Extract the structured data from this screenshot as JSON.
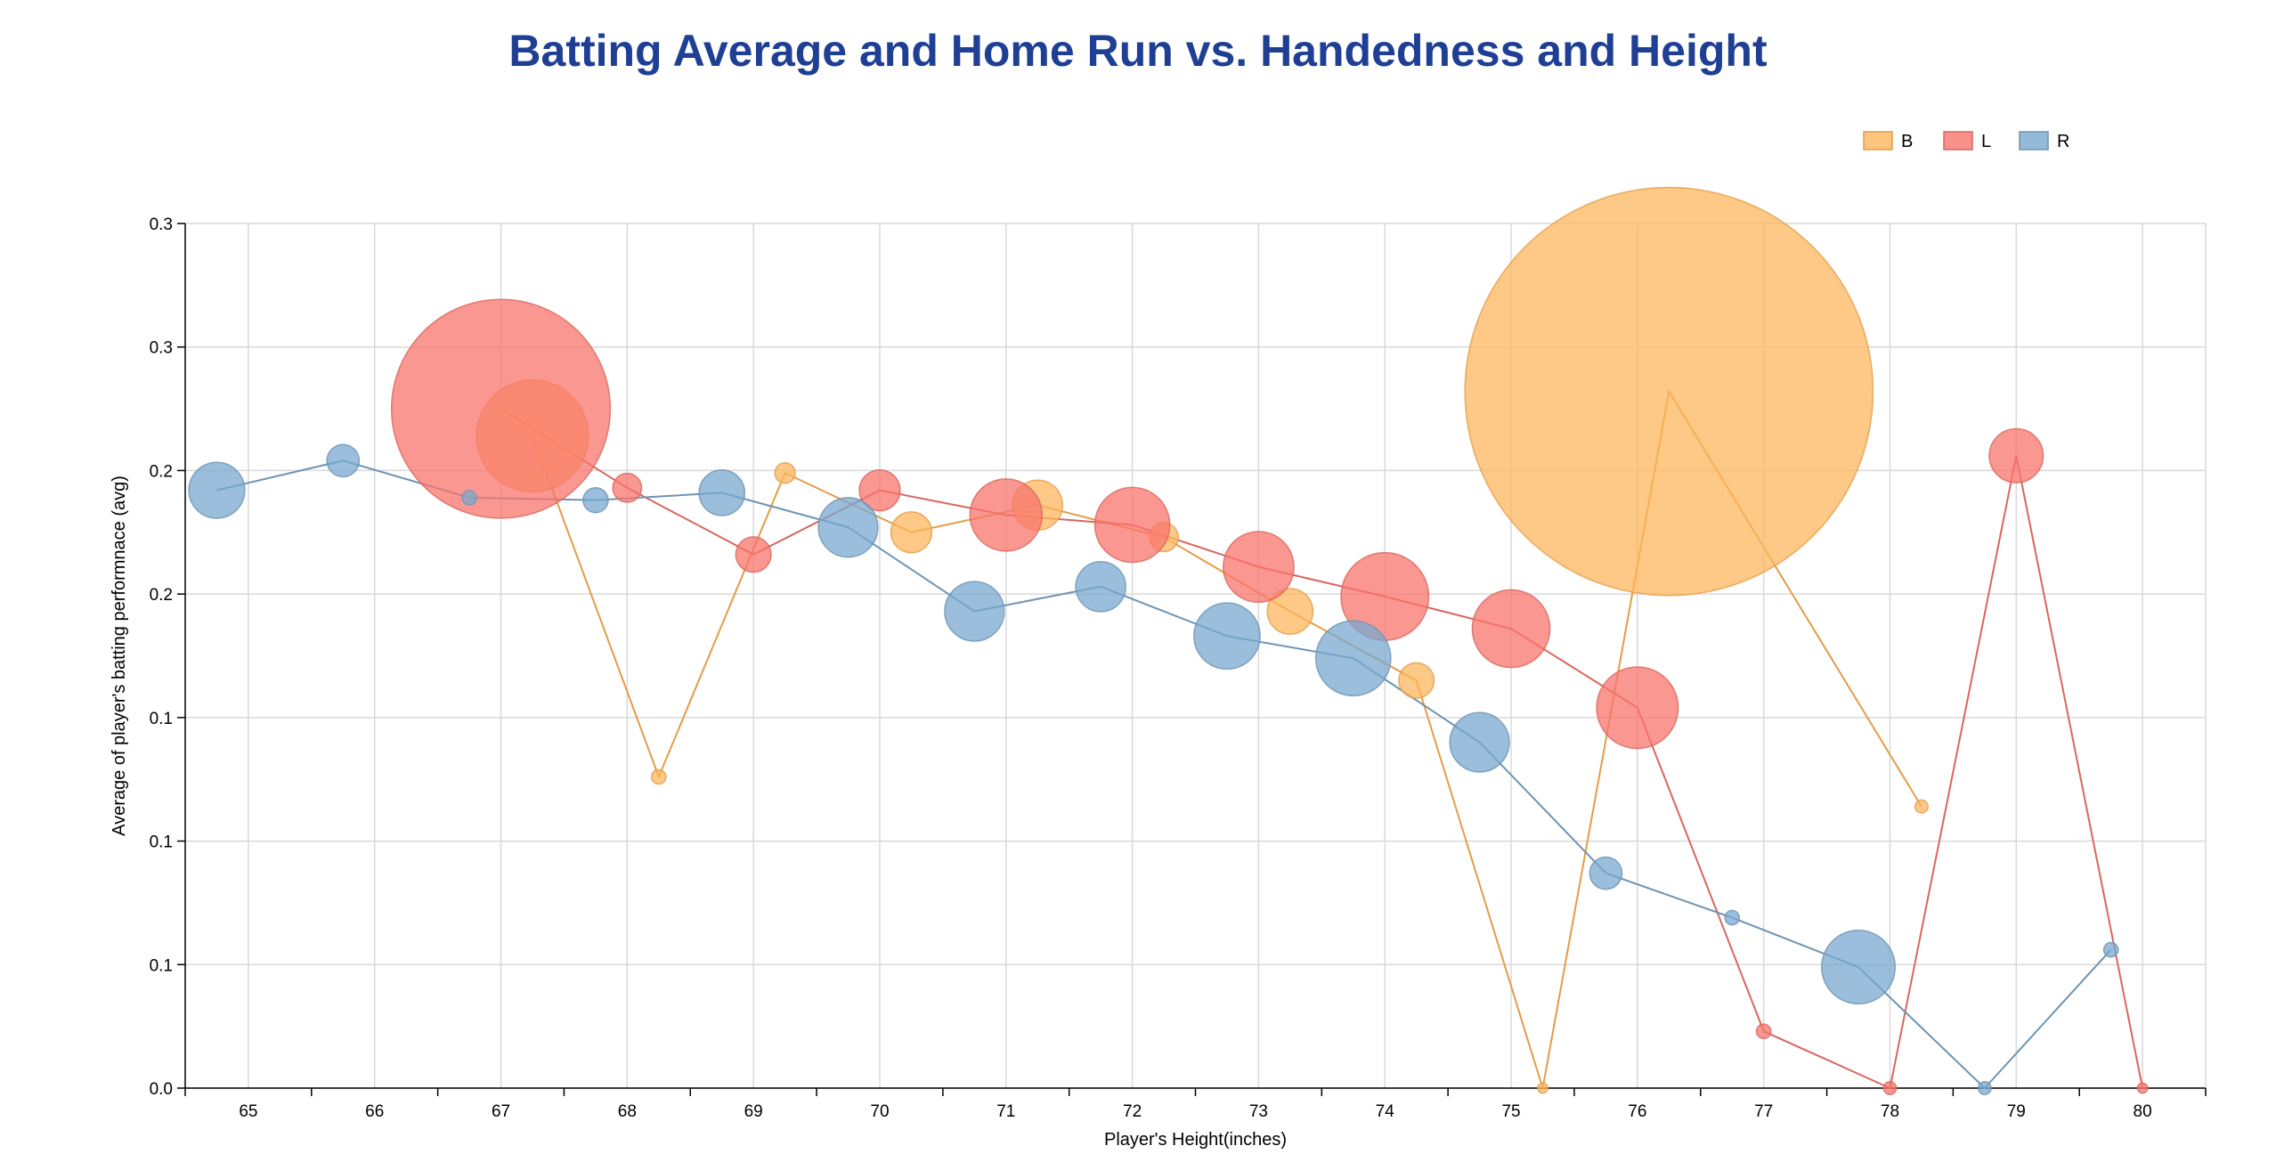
{
  "colors": {
    "title": "#1e3f94",
    "B": "#fdb55e",
    "L": "#f8746c",
    "R": "#78a8cf",
    "B_line": "#e49c48",
    "L_line": "#d9675e",
    "R_line": "#6d94b3",
    "grid": "#d9d9d9"
  },
  "chart_data": {
    "type": "scatter",
    "subtype": "bubble-with-lines",
    "title": "Batting Average and Home Run vs. Handedness and Height",
    "xlabel": "Player's Height(inches)",
    "ylabel": "Average of player's batting performnace (avg)",
    "xlim": [
      64.5,
      80.5
    ],
    "ylim": [
      0,
      0.35
    ],
    "x_ticks": [
      65,
      66,
      67,
      68,
      69,
      70,
      71,
      72,
      73,
      74,
      75,
      76,
      77,
      78,
      79,
      80
    ],
    "x_tick_labels": [
      "65",
      "66",
      "67",
      "68",
      "69",
      "70",
      "71",
      "72",
      "73",
      "74",
      "75",
      "76",
      "77",
      "78",
      "79",
      "80"
    ],
    "y_ticks": [
      0,
      0.05,
      0.1,
      0.15,
      0.2,
      0.25,
      0.3,
      0.35
    ],
    "y_tick_labels": [
      "0.0",
      "0.1",
      "0.1",
      "0.1",
      "0.2",
      "0.2",
      "0.3",
      "0.3"
    ],
    "grid": true,
    "legend_position": "top-right",
    "size_encoding": "home runs",
    "series": [
      {
        "name": "B",
        "points": [
          {
            "x": 67.25,
            "y": 0.264,
            "size": 60
          },
          {
            "x": 68.25,
            "y": 0.126,
            "size": 1
          },
          {
            "x": 69.25,
            "y": 0.249,
            "size": 2
          },
          {
            "x": 70.25,
            "y": 0.225,
            "size": 8
          },
          {
            "x": 71.25,
            "y": 0.236,
            "size": 12
          },
          {
            "x": 72.25,
            "y": 0.223,
            "size": 4
          },
          {
            "x": 73.25,
            "y": 0.193,
            "size": 10
          },
          {
            "x": 74.25,
            "y": 0.165,
            "size": 6
          },
          {
            "x": 75.25,
            "y": 0.0,
            "size": 0.5
          },
          {
            "x": 76.25,
            "y": 0.282,
            "size": 800
          },
          {
            "x": 78.25,
            "y": 0.114,
            "size": 0.8
          }
        ]
      },
      {
        "name": "L",
        "points": [
          {
            "x": 67.0,
            "y": 0.275,
            "size": 230
          },
          {
            "x": 68.0,
            "y": 0.243,
            "size": 4
          },
          {
            "x": 69.0,
            "y": 0.216,
            "size": 6
          },
          {
            "x": 70.0,
            "y": 0.242,
            "size": 8
          },
          {
            "x": 71.0,
            "y": 0.232,
            "size": 25
          },
          {
            "x": 72.0,
            "y": 0.228,
            "size": 27
          },
          {
            "x": 73.0,
            "y": 0.211,
            "size": 24
          },
          {
            "x": 74.0,
            "y": 0.199,
            "size": 37
          },
          {
            "x": 75.0,
            "y": 0.186,
            "size": 29
          },
          {
            "x": 76.0,
            "y": 0.154,
            "size": 32
          },
          {
            "x": 77.0,
            "y": 0.023,
            "size": 1
          },
          {
            "x": 78.0,
            "y": 0.0,
            "size": 0.8
          },
          {
            "x": 79.0,
            "y": 0.256,
            "size": 14
          },
          {
            "x": 80.0,
            "y": 0.0,
            "size": 0.5
          }
        ]
      },
      {
        "name": "R",
        "points": [
          {
            "x": 64.75,
            "y": 0.242,
            "size": 15
          },
          {
            "x": 65.75,
            "y": 0.254,
            "size": 5
          },
          {
            "x": 66.75,
            "y": 0.239,
            "size": 1
          },
          {
            "x": 67.75,
            "y": 0.238,
            "size": 3
          },
          {
            "x": 68.75,
            "y": 0.241,
            "size": 10
          },
          {
            "x": 69.75,
            "y": 0.227,
            "size": 17
          },
          {
            "x": 70.75,
            "y": 0.193,
            "size": 17
          },
          {
            "x": 71.75,
            "y": 0.203,
            "size": 12
          },
          {
            "x": 72.75,
            "y": 0.183,
            "size": 21
          },
          {
            "x": 73.75,
            "y": 0.174,
            "size": 27
          },
          {
            "x": 74.75,
            "y": 0.14,
            "size": 17
          },
          {
            "x": 75.75,
            "y": 0.087,
            "size": 5
          },
          {
            "x": 76.75,
            "y": 0.069,
            "size": 1
          },
          {
            "x": 77.75,
            "y": 0.049,
            "size": 26
          },
          {
            "x": 78.75,
            "y": 0.0,
            "size": 0.8
          },
          {
            "x": 79.75,
            "y": 0.056,
            "size": 1
          }
        ]
      }
    ]
  }
}
